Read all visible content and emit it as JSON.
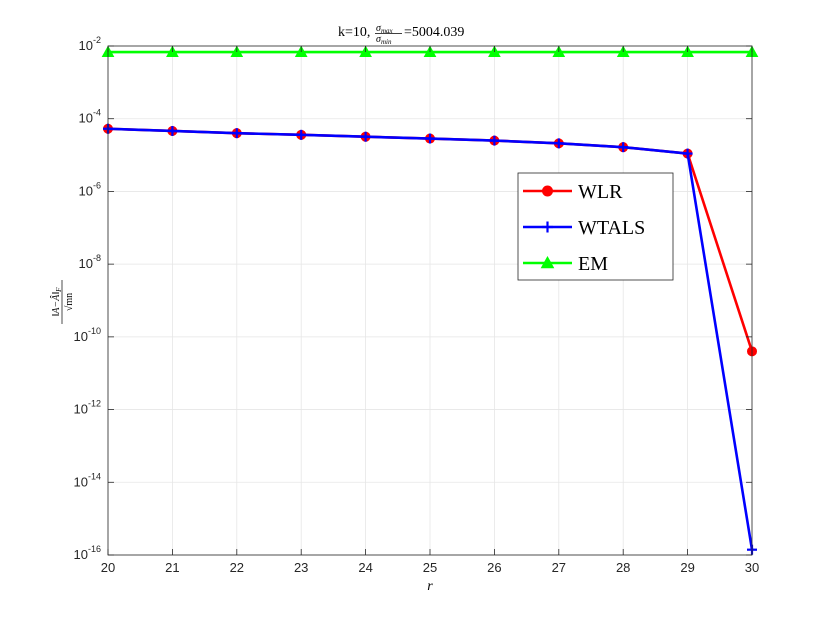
{
  "chart_data": {
    "type": "line",
    "title_prefix": "k=10,",
    "title_frac_num": "σ",
    "title_frac_num_sub": "max",
    "title_frac_den": "σ",
    "title_frac_den_sub": "min",
    "title_value": "=5004.039",
    "xlabel": "r",
    "ylabel": "‖A−Â‖F / √mn",
    "ylabel_num": "‖A−Â‖",
    "ylabel_num_sub": "F",
    "ylabel_den": "√mn",
    "x": [
      20,
      21,
      22,
      23,
      24,
      25,
      26,
      27,
      28,
      29,
      30
    ],
    "xlim": [
      20,
      30
    ],
    "ylim": [
      1e-16,
      0.01
    ],
    "yscale": "log",
    "x_ticks": [
      "20",
      "21",
      "22",
      "23",
      "24",
      "25",
      "26",
      "27",
      "28",
      "29",
      "30"
    ],
    "y_tick_exponents": [
      "-16",
      "-14",
      "-12",
      "-10",
      "-8",
      "-6",
      "-4",
      "-2"
    ],
    "y_tick_base": "10",
    "grid": true,
    "legend_position": "center-right",
    "series": [
      {
        "name": "WLR",
        "color": "#ff0000",
        "marker": "circle",
        "values": [
          5.3e-05,
          4.6e-05,
          4e-05,
          3.6e-05,
          3.2e-05,
          2.85e-05,
          2.5e-05,
          2.1e-05,
          1.65e-05,
          1.1e-05,
          4e-11
        ]
      },
      {
        "name": "WTALS",
        "color": "#0000ff",
        "marker": "plus",
        "values": [
          5.3e-05,
          4.6e-05,
          4e-05,
          3.6e-05,
          3.2e-05,
          2.85e-05,
          2.5e-05,
          2.1e-05,
          1.65e-05,
          1.1e-05,
          1.4e-16
        ]
      },
      {
        "name": "EM",
        "color": "#00ff00",
        "marker": "triangle",
        "values": [
          0.0068,
          0.0068,
          0.0068,
          0.0068,
          0.0068,
          0.0068,
          0.0068,
          0.0068,
          0.0068,
          0.0068,
          0.0068
        ]
      }
    ]
  }
}
